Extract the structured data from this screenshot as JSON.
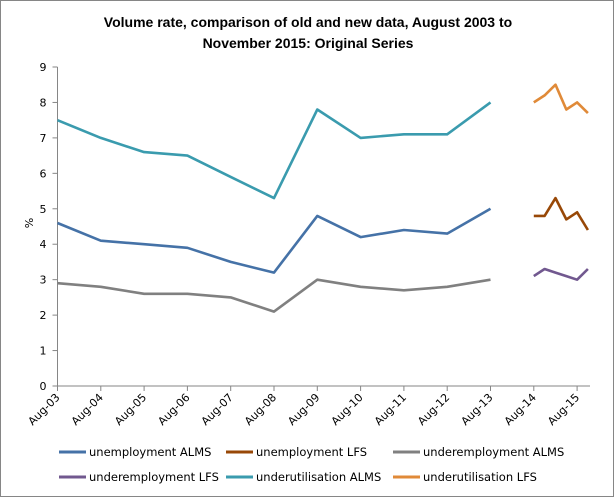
{
  "chart_data": {
    "type": "line",
    "title": [
      "Volume rate, comparison of old and new data, August 2003 to",
      "November 2015: Original Series"
    ],
    "ylabel": "%",
    "xlabel": "",
    "ylim": [
      0,
      9
    ],
    "yticks": [
      "0",
      "1",
      "2",
      "3",
      "4",
      "5",
      "6",
      "7",
      "8",
      "9"
    ],
    "xtick_labels": [
      "Aug-03",
      "Aug-04",
      "Aug-05",
      "Aug-06",
      "Aug-07",
      "Aug-08",
      "Aug-09",
      "Aug-10",
      "Aug-11",
      "Aug-12",
      "Aug-13",
      "Aug-14",
      "Aug-15"
    ],
    "grid": false,
    "legend_position": "bottom",
    "alms_x": [
      "Aug-03",
      "Aug-04",
      "Aug-05",
      "Aug-06",
      "Aug-07",
      "Aug-08",
      "Aug-09",
      "Aug-10",
      "Aug-11",
      "Aug-12",
      "Aug-13"
    ],
    "lfs_x": [
      "Aug-14",
      "Nov-14",
      "Feb-15",
      "May-15",
      "Aug-15",
      "Nov-15"
    ],
    "series": [
      {
        "name": "unemployment ALMS",
        "group": "alms",
        "color": "#4572A7",
        "values": [
          4.6,
          4.1,
          4.0,
          3.9,
          3.5,
          3.2,
          4.8,
          4.2,
          4.4,
          4.3,
          5.0
        ]
      },
      {
        "name": "unemployment LFS",
        "group": "lfs",
        "color": "#984807",
        "values": [
          4.8,
          4.8,
          5.3,
          4.7,
          4.9,
          4.4
        ]
      },
      {
        "name": "underemployment ALMS",
        "group": "alms",
        "color": "#808080",
        "values": [
          2.9,
          2.8,
          2.6,
          2.6,
          2.5,
          2.1,
          3.0,
          2.8,
          2.7,
          2.8,
          3.0
        ]
      },
      {
        "name": "underemployment LFS",
        "group": "lfs",
        "color": "#71588F",
        "values": [
          3.1,
          3.3,
          3.2,
          3.1,
          3.0,
          3.3
        ]
      },
      {
        "name": "underutilisation ALMS",
        "group": "alms",
        "color": "#3A9BAE",
        "values": [
          7.5,
          7.0,
          6.6,
          6.5,
          5.9,
          5.3,
          7.8,
          7.0,
          7.1,
          7.1,
          8.0
        ]
      },
      {
        "name": "underutilisation LFS",
        "group": "lfs",
        "color": "#E08A38",
        "values": [
          8.0,
          8.2,
          8.5,
          7.8,
          8.0,
          7.7
        ]
      }
    ]
  }
}
